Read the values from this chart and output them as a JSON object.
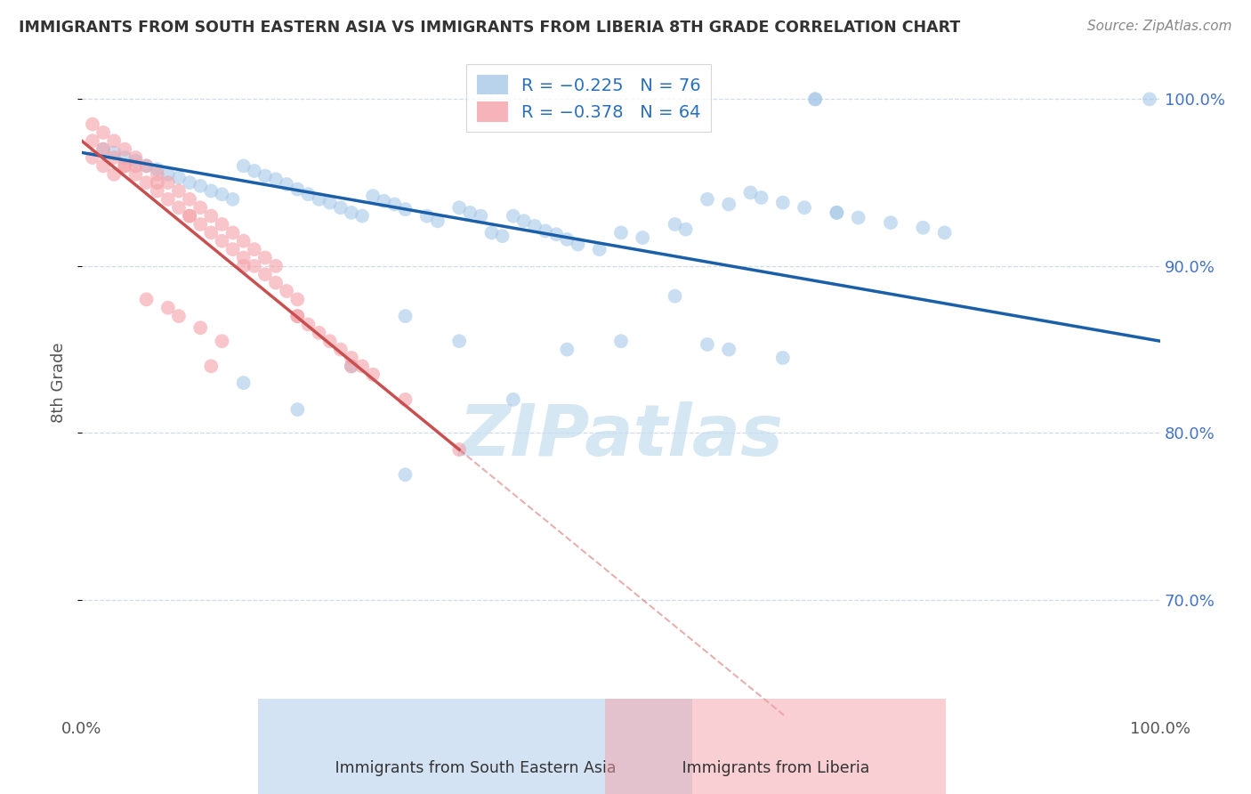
{
  "title": "IMMIGRANTS FROM SOUTH EASTERN ASIA VS IMMIGRANTS FROM LIBERIA 8TH GRADE CORRELATION CHART",
  "source": "Source: ZipAtlas.com",
  "ylabel": "8th Grade",
  "ytick_labels": [
    "100.0%",
    "90.0%",
    "80.0%",
    "70.0%"
  ],
  "ytick_values": [
    1.0,
    0.9,
    0.8,
    0.7
  ],
  "xlim": [
    0.0,
    1.0
  ],
  "ylim": [
    0.63,
    1.03
  ],
  "legend_blue_r": "R = −0.225",
  "legend_blue_n": "N = 76",
  "legend_pink_r": "R = −0.378",
  "legend_pink_n": "N = 64",
  "blue_color": "#a8c8e8",
  "pink_color": "#f4a0a8",
  "blue_line_color": "#1a5fa8",
  "pink_line_color": "#c85050",
  "blue_scatter_x": [
    0.02,
    0.03,
    0.04,
    0.05,
    0.06,
    0.07,
    0.08,
    0.09,
    0.1,
    0.11,
    0.12,
    0.13,
    0.14,
    0.15,
    0.16,
    0.17,
    0.18,
    0.19,
    0.2,
    0.21,
    0.22,
    0.23,
    0.24,
    0.25,
    0.26,
    0.27,
    0.28,
    0.29,
    0.3,
    0.32,
    0.33,
    0.35,
    0.36,
    0.37,
    0.38,
    0.39,
    0.4,
    0.41,
    0.42,
    0.43,
    0.44,
    0.45,
    0.46,
    0.48,
    0.5,
    0.52,
    0.55,
    0.56,
    0.58,
    0.6,
    0.62,
    0.63,
    0.65,
    0.67,
    0.68,
    0.7,
    0.72,
    0.75,
    0.78,
    0.8,
    0.2,
    0.3,
    0.4,
    0.5,
    0.6,
    0.15,
    0.25,
    0.35,
    0.45,
    0.55,
    0.65,
    0.7,
    0.58,
    0.3,
    0.99,
    0.68
  ],
  "blue_scatter_y": [
    0.97,
    0.968,
    0.965,
    0.963,
    0.96,
    0.958,
    0.955,
    0.953,
    0.95,
    0.948,
    0.945,
    0.943,
    0.94,
    0.96,
    0.957,
    0.954,
    0.952,
    0.949,
    0.946,
    0.943,
    0.94,
    0.938,
    0.935,
    0.932,
    0.93,
    0.942,
    0.939,
    0.937,
    0.934,
    0.93,
    0.927,
    0.935,
    0.932,
    0.93,
    0.92,
    0.918,
    0.93,
    0.927,
    0.924,
    0.921,
    0.919,
    0.916,
    0.913,
    0.91,
    0.92,
    0.917,
    0.925,
    0.922,
    0.94,
    0.937,
    0.944,
    0.941,
    0.938,
    0.935,
    1.0,
    0.932,
    0.929,
    0.926,
    0.923,
    0.92,
    0.814,
    0.87,
    0.82,
    0.855,
    0.85,
    0.83,
    0.84,
    0.855,
    0.85,
    0.882,
    0.845,
    0.932,
    0.853,
    0.775,
    1.0,
    1.0
  ],
  "pink_scatter_x": [
    0.01,
    0.01,
    0.01,
    0.02,
    0.02,
    0.02,
    0.03,
    0.03,
    0.03,
    0.04,
    0.04,
    0.05,
    0.05,
    0.06,
    0.06,
    0.07,
    0.07,
    0.08,
    0.08,
    0.09,
    0.09,
    0.1,
    0.1,
    0.11,
    0.11,
    0.12,
    0.12,
    0.13,
    0.13,
    0.14,
    0.14,
    0.15,
    0.15,
    0.16,
    0.16,
    0.17,
    0.17,
    0.18,
    0.18,
    0.19,
    0.2,
    0.2,
    0.21,
    0.22,
    0.23,
    0.24,
    0.25,
    0.26,
    0.27,
    0.05,
    0.1,
    0.15,
    0.2,
    0.25,
    0.3,
    0.09,
    0.13,
    0.35,
    0.11,
    0.08,
    0.06,
    0.04,
    0.07,
    0.12
  ],
  "pink_scatter_y": [
    0.985,
    0.975,
    0.965,
    0.98,
    0.97,
    0.96,
    0.975,
    0.965,
    0.955,
    0.97,
    0.96,
    0.965,
    0.955,
    0.96,
    0.95,
    0.955,
    0.945,
    0.95,
    0.94,
    0.945,
    0.935,
    0.94,
    0.93,
    0.935,
    0.925,
    0.93,
    0.92,
    0.925,
    0.915,
    0.92,
    0.91,
    0.915,
    0.905,
    0.91,
    0.9,
    0.905,
    0.895,
    0.9,
    0.89,
    0.885,
    0.88,
    0.87,
    0.865,
    0.86,
    0.855,
    0.85,
    0.845,
    0.84,
    0.835,
    0.96,
    0.93,
    0.9,
    0.87,
    0.84,
    0.82,
    0.87,
    0.855,
    0.79,
    0.863,
    0.875,
    0.88,
    0.96,
    0.95,
    0.84
  ],
  "watermark": "ZIPatlas",
  "background_color": "#ffffff",
  "grid_color": "#c8d8e8"
}
